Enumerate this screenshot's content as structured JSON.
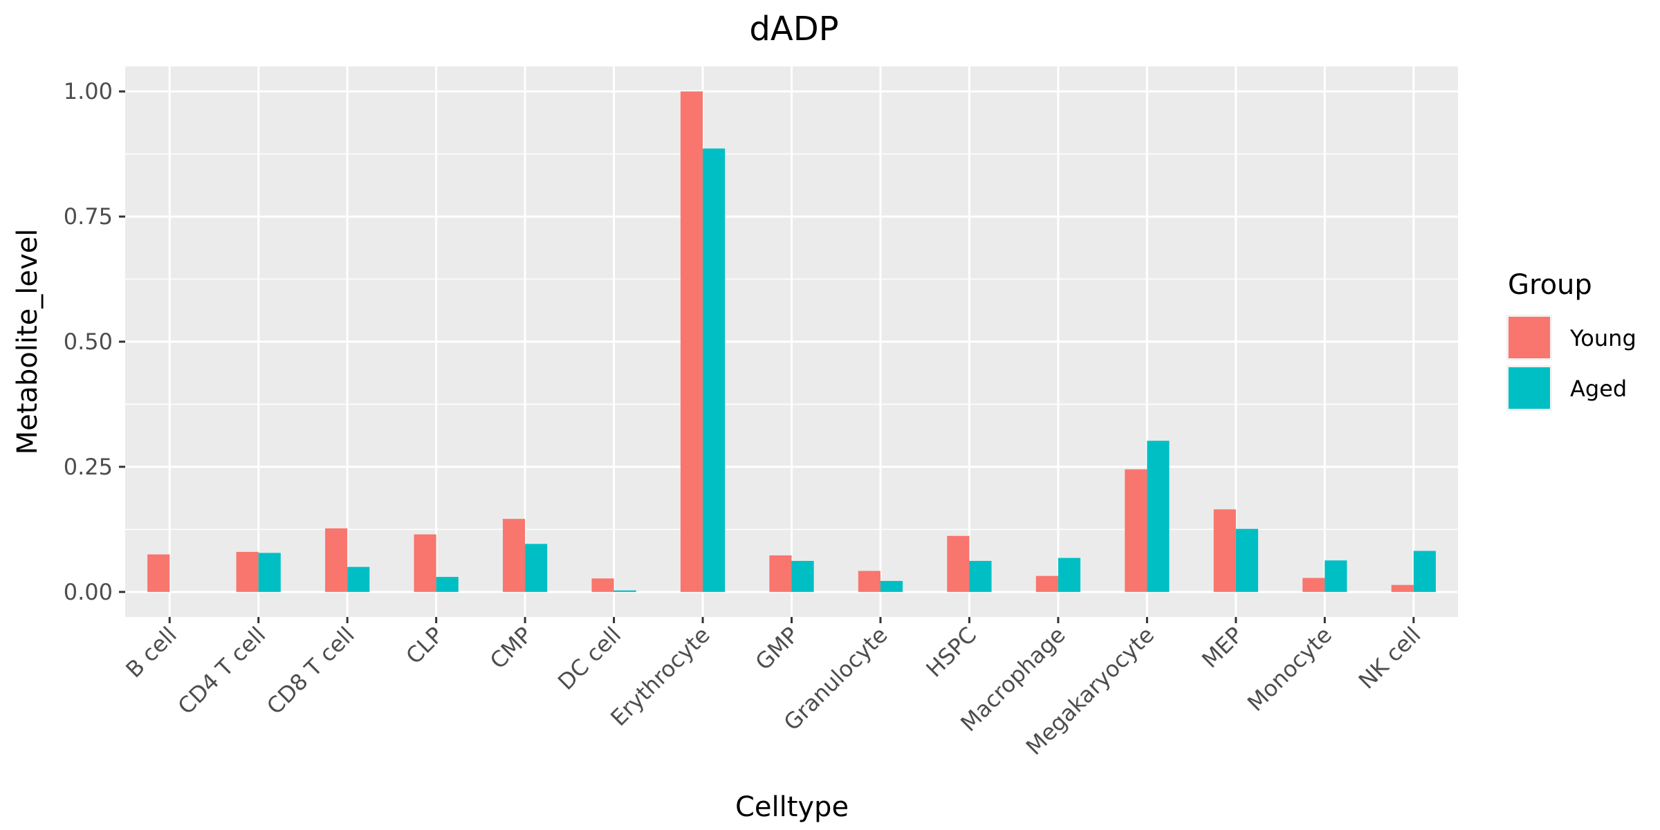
{
  "chart_data": {
    "type": "bar",
    "title": "dADP",
    "xlabel": "Celltype",
    "ylabel": "Metabolite_level",
    "ylim": [
      -0.05,
      1.05
    ],
    "yticks": [
      0.0,
      0.25,
      0.5,
      0.75,
      1.0
    ],
    "ytick_labels": [
      "0.00",
      "0.25",
      "0.50",
      "0.75",
      "1.00"
    ],
    "grid": true,
    "legend_title": "Group",
    "legend_position": "right",
    "categories": [
      "B cell",
      "CD4 T cell",
      "CD8 T cell",
      "CLP",
      "CMP",
      "DC cell",
      "Erythrocyte",
      "GMP",
      "Granulocyte",
      "HSPC",
      "Macrophage",
      "Megakaryocyte",
      "MEP",
      "Monocyte",
      "NK cell"
    ],
    "series": [
      {
        "name": "Young",
        "color": "#F8766D",
        "values": [
          0.075,
          0.08,
          0.127,
          0.115,
          0.146,
          0.027,
          1.0,
          0.073,
          0.042,
          0.112,
          0.032,
          0.245,
          0.165,
          0.028,
          0.014
        ]
      },
      {
        "name": "Aged",
        "color": "#00BFC4",
        "values": [
          null,
          0.078,
          0.05,
          0.03,
          0.096,
          0.003,
          0.886,
          0.062,
          0.022,
          0.062,
          0.068,
          0.302,
          0.126,
          0.063,
          0.082
        ]
      }
    ]
  }
}
